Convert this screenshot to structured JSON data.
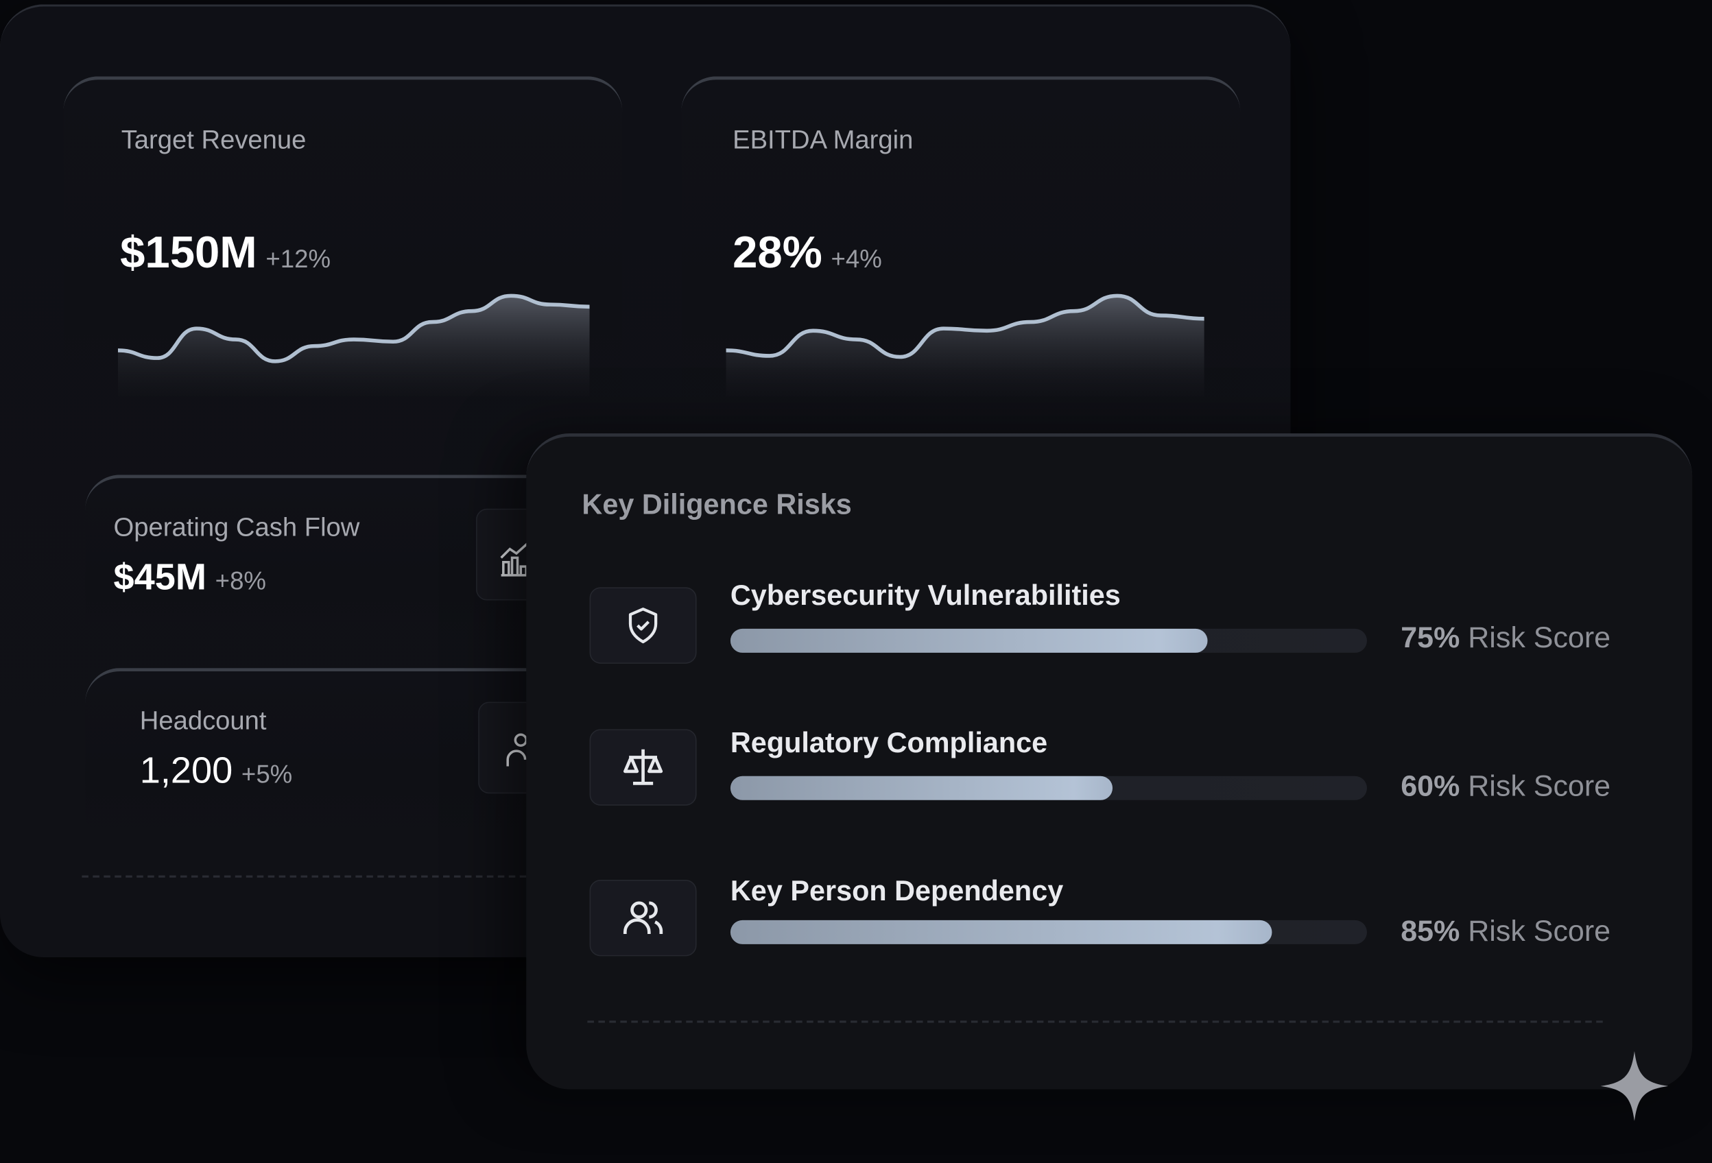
{
  "kpis": [
    {
      "label": "Target Revenue",
      "value": "$150M",
      "delta": "+12%",
      "trend": [
        32,
        25,
        52,
        42,
        22,
        36,
        42,
        40,
        58,
        68,
        82,
        74,
        72
      ]
    },
    {
      "label": "EBITDA Margin",
      "value": "28%",
      "delta": "+4%",
      "trend": [
        32,
        27,
        50,
        42,
        26,
        52,
        50,
        58,
        68,
        82,
        64,
        61
      ]
    },
    {
      "label": "Operating Cash Flow",
      "value": "$45M",
      "delta": "+8%",
      "icon": "bar-chart-trend-icon"
    },
    {
      "label": "Headcount",
      "value": "1,200",
      "delta": "+5%",
      "icon": "user-icon"
    }
  ],
  "risks": {
    "title": "Key Diligence Risks",
    "score_suffix": "Risk Score",
    "items": [
      {
        "label": "Cybersecurity Vulnerabilities",
        "percent": 75,
        "score": "75%",
        "icon": "shield-check-icon"
      },
      {
        "label": "Regulatory Compliance",
        "percent": 60,
        "score": "60%",
        "icon": "scale-icon"
      },
      {
        "label": "Key Person Dependency",
        "percent": 85,
        "score": "85%",
        "icon": "users-icon"
      }
    ]
  },
  "colors": {
    "background": "#07080c",
    "panel": "#111216",
    "bar_fill": "#a7b6ca",
    "sparkline": "#b0bfd0"
  }
}
